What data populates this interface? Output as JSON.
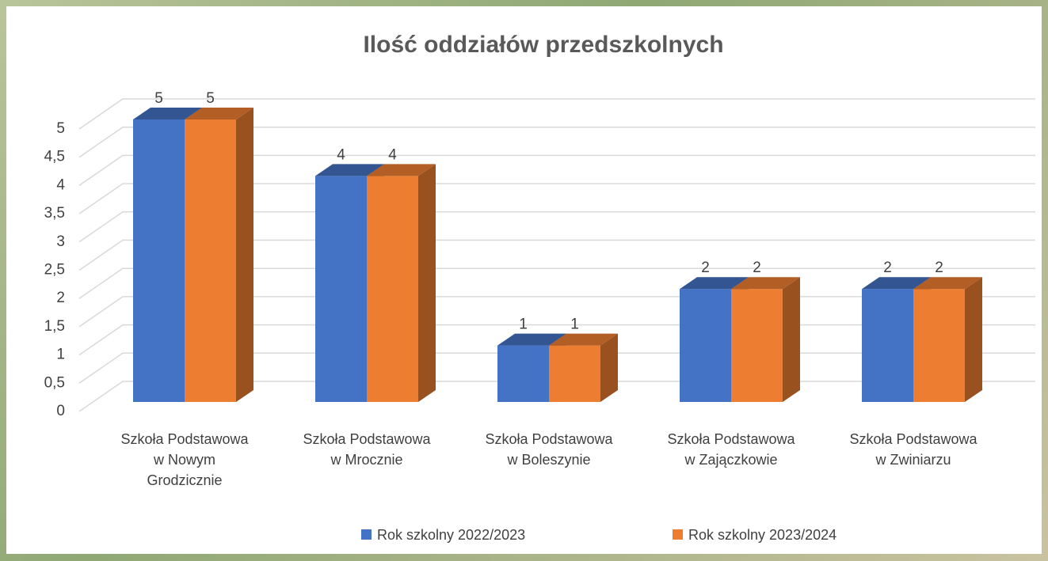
{
  "chart_data": {
    "type": "bar3d",
    "title": "Ilość oddziałów przedszkolnych",
    "categories": [
      "Szkoła Podstawowa\nw Nowym\nGrodzicznie",
      "Szkoła Podstawowa\nw Mrocznie",
      "Szkoła Podstawowa\nw Boleszynie",
      "Szkoła Podstawowa\nw Zajączkowie",
      "Szkoła Podstawowa\nw Zwiniarzu"
    ],
    "series": [
      {
        "name": "Rok szkolny 2022/2023",
        "color": "#4472c4",
        "values": [
          5,
          4,
          1,
          2,
          2
        ]
      },
      {
        "name": "Rok szkolny 2023/2024",
        "color": "#ed7d31",
        "values": [
          5,
          4,
          1,
          2,
          2
        ]
      }
    ],
    "ylim": [
      0,
      5
    ],
    "yticks": [
      0,
      {
        "value": 0.5,
        "label": "0,5"
      },
      1,
      {
        "value": 1.5,
        "label": "1,5"
      },
      2,
      {
        "value": 2.5,
        "label": "2,5"
      },
      3,
      {
        "value": 3.5,
        "label": "3,5"
      },
      4,
      {
        "value": 4.5,
        "label": "4,5"
      },
      5
    ],
    "grid": true,
    "legend": "bottom"
  }
}
